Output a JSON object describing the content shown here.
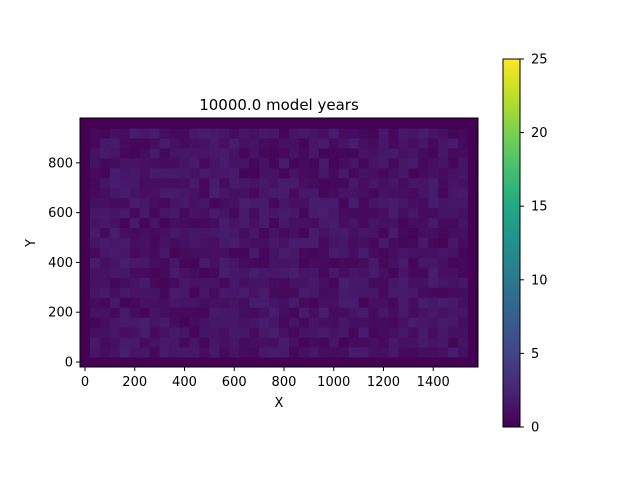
{
  "chart_data": {
    "type": "heatmap",
    "title": "10000.0 model years",
    "xlabel": "X",
    "ylabel": "Y",
    "xlim": [
      -20,
      1580
    ],
    "ylim": [
      -20,
      980
    ],
    "xticks": [
      0,
      200,
      400,
      600,
      800,
      1000,
      1200,
      1400
    ],
    "yticks": [
      0,
      200,
      400,
      600,
      800
    ],
    "grid": false,
    "colormap": "viridis",
    "color_range": [
      0,
      25
    ],
    "colorbar_ticks": [
      0,
      5,
      10,
      15,
      20,
      25
    ],
    "cell_size": 40,
    "grid_cols": 40,
    "grid_rows": 25,
    "value_range_interior": [
      0.3,
      2.0
    ],
    "boundary_value": 0.0
  }
}
